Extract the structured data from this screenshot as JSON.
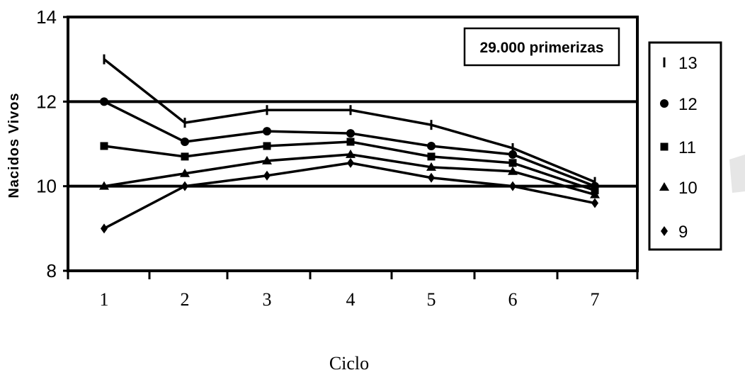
{
  "chart_data": {
    "type": "line",
    "xlabel": "Ciclo",
    "ylabel": "Nacidos Vivos",
    "x": [
      1,
      2,
      3,
      4,
      5,
      6,
      7
    ],
    "xticks": [
      "1",
      "2",
      "3",
      "4",
      "5",
      "6",
      "7"
    ],
    "yticks": [
      "8",
      "10",
      "12",
      "14"
    ],
    "ylim": [
      8,
      14
    ],
    "annotation": "29.000 primerizas",
    "legend_position": "right",
    "series": [
      {
        "name": "13",
        "marker": "tick",
        "values": [
          13.0,
          11.5,
          11.8,
          11.8,
          11.45,
          10.9,
          10.1
        ]
      },
      {
        "name": "12",
        "marker": "circle",
        "values": [
          12.0,
          11.05,
          11.3,
          11.25,
          10.95,
          10.75,
          10.0
        ]
      },
      {
        "name": "11",
        "marker": "square",
        "values": [
          10.95,
          10.7,
          10.95,
          11.05,
          10.7,
          10.55,
          9.9
        ]
      },
      {
        "name": "10",
        "marker": "triangle",
        "values": [
          10.0,
          10.3,
          10.6,
          10.75,
          10.45,
          10.35,
          9.8
        ]
      },
      {
        "name": "9",
        "marker": "diamond",
        "values": [
          9.0,
          10.0,
          10.25,
          10.55,
          10.2,
          10.0,
          9.6
        ]
      }
    ],
    "grid": {
      "major_y_lines": [
        10,
        12,
        14
      ]
    }
  }
}
